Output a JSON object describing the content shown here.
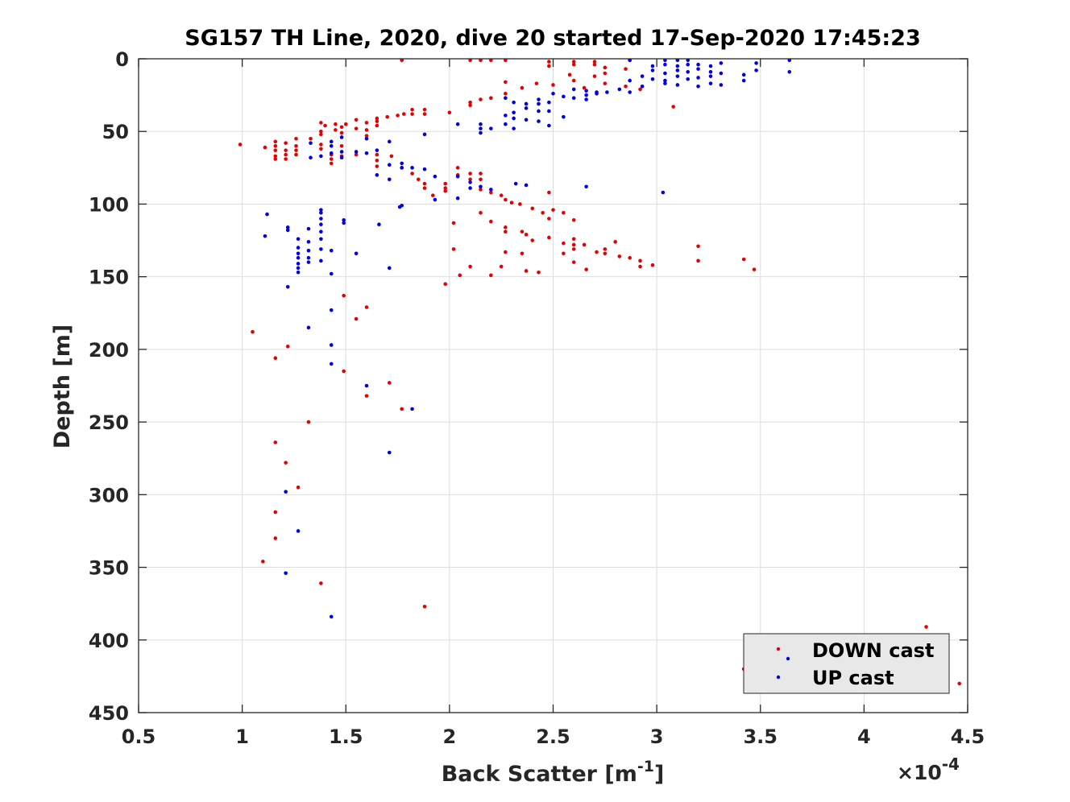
{
  "chart_data": {
    "type": "scatter",
    "title": "SG157 TH Line, 2020, dive 20 started 17-Sep-2020 17:45:23",
    "xlabel": "Back Scatter [m",
    "xlabel_sup": "-1",
    "xlabel_end": "]",
    "ylabel": "Depth [m]",
    "x_multiplier": {
      "base": "×10",
      "exponent": "-4"
    },
    "xlim": [
      0.5,
      4.5
    ],
    "ylim": [
      0,
      450
    ],
    "y_reversed": true,
    "grid": true,
    "legend_position": "bottom-right",
    "x_ticks": [
      "0.5",
      "1",
      "1.5",
      "2",
      "2.5",
      "3",
      "3.5",
      "4",
      "4.5"
    ],
    "y_ticks": [
      "0",
      "50",
      "100",
      "150",
      "200",
      "250",
      "300",
      "350",
      "400",
      "450"
    ],
    "series": [
      {
        "name": "DOWN cast",
        "color": "#e60000",
        "points": [
          [
            1.77,
            1
          ],
          [
            2.1,
            1
          ],
          [
            2.15,
            1
          ],
          [
            2.2,
            1
          ],
          [
            2.27,
            1
          ],
          [
            2.48,
            2
          ],
          [
            2.6,
            2
          ],
          [
            2.7,
            2
          ],
          [
            2.87,
            1
          ],
          [
            2.48,
            5
          ],
          [
            2.6,
            4
          ],
          [
            2.7,
            4
          ],
          [
            2.75,
            6
          ],
          [
            2.85,
            7
          ],
          [
            2.75,
            10
          ],
          [
            2.58,
            11
          ],
          [
            2.7,
            12
          ],
          [
            2.6,
            15
          ],
          [
            2.5,
            18
          ],
          [
            2.27,
            16
          ],
          [
            2.42,
            17
          ],
          [
            2.35,
            20
          ],
          [
            2.65,
            20
          ],
          [
            2.75,
            17
          ],
          [
            2.85,
            19
          ],
          [
            2.92,
            21
          ],
          [
            3.08,
            33
          ],
          [
            2.27,
            24
          ],
          [
            2.2,
            27
          ],
          [
            2.15,
            28
          ],
          [
            2.1,
            30
          ],
          [
            2.1,
            32
          ],
          [
            2.0,
            37
          ],
          [
            1.88,
            35
          ],
          [
            1.88,
            38
          ],
          [
            1.82,
            35
          ],
          [
            1.82,
            38
          ],
          [
            1.78,
            38
          ],
          [
            1.75,
            39
          ],
          [
            1.7,
            40
          ],
          [
            1.65,
            41
          ],
          [
            1.6,
            44
          ],
          [
            1.55,
            42
          ],
          [
            1.5,
            45
          ],
          [
            1.45,
            45
          ],
          [
            1.4,
            46
          ],
          [
            1.38,
            44
          ],
          [
            1.38,
            50
          ],
          [
            1.38,
            52
          ],
          [
            1.45,
            49
          ],
          [
            1.48,
            47
          ],
          [
            1.55,
            48
          ],
          [
            1.6,
            49
          ],
          [
            1.6,
            53
          ],
          [
            1.65,
            43
          ],
          [
            1.65,
            46
          ],
          [
            1.48,
            51
          ],
          [
            0.99,
            59
          ],
          [
            1.11,
            61
          ],
          [
            1.16,
            57
          ],
          [
            1.16,
            60
          ],
          [
            1.16,
            63
          ],
          [
            1.16,
            67
          ],
          [
            1.16,
            69
          ],
          [
            1.21,
            58
          ],
          [
            1.21,
            63
          ],
          [
            1.21,
            66
          ],
          [
            1.21,
            69
          ],
          [
            1.26,
            55
          ],
          [
            1.26,
            60
          ],
          [
            1.26,
            63
          ],
          [
            1.26,
            66
          ],
          [
            1.33,
            55
          ],
          [
            1.38,
            59
          ],
          [
            1.38,
            62
          ],
          [
            1.43,
            66
          ],
          [
            1.43,
            69
          ],
          [
            1.43,
            72
          ],
          [
            1.48,
            60
          ],
          [
            1.48,
            67
          ],
          [
            1.55,
            66
          ],
          [
            1.65,
            66
          ],
          [
            1.65,
            70
          ],
          [
            1.65,
            74
          ],
          [
            1.72,
            67
          ],
          [
            1.77,
            75
          ],
          [
            1.82,
            79
          ],
          [
            1.85,
            83
          ],
          [
            1.88,
            86
          ],
          [
            1.88,
            89
          ],
          [
            1.92,
            94
          ],
          [
            1.98,
            86
          ],
          [
            1.98,
            89
          ],
          [
            1.98,
            91
          ],
          [
            2.04,
            75
          ],
          [
            2.04,
            80
          ],
          [
            2.1,
            79
          ],
          [
            2.1,
            83
          ],
          [
            2.15,
            79
          ],
          [
            2.15,
            83
          ],
          [
            2.15,
            90
          ],
          [
            2.2,
            92
          ],
          [
            2.25,
            94
          ],
          [
            2.27,
            97
          ],
          [
            2.3,
            99
          ],
          [
            2.34,
            100
          ],
          [
            2.4,
            103
          ],
          [
            2.45,
            106
          ],
          [
            2.48,
            110
          ],
          [
            2.5,
            104
          ],
          [
            2.55,
            106
          ],
          [
            2.6,
            111
          ],
          [
            2.02,
            113
          ],
          [
            2.15,
            106
          ],
          [
            2.2,
            112
          ],
          [
            2.27,
            116
          ],
          [
            2.27,
            119
          ],
          [
            2.35,
            119
          ],
          [
            2.37,
            121
          ],
          [
            2.4,
            125
          ],
          [
            2.48,
            92
          ],
          [
            2.48,
            123
          ],
          [
            2.55,
            127
          ],
          [
            2.6,
            124
          ],
          [
            2.6,
            128
          ],
          [
            2.6,
            131
          ],
          [
            2.65,
            128
          ],
          [
            2.71,
            133
          ],
          [
            2.8,
            126
          ],
          [
            2.82,
            136
          ],
          [
            2.87,
            137
          ],
          [
            2.92,
            139
          ],
          [
            2.98,
            142
          ],
          [
            2.92,
            143
          ],
          [
            2.75,
            131
          ],
          [
            2.75,
            134
          ],
          [
            2.55,
            134
          ],
          [
            2.6,
            140
          ],
          [
            2.66,
            145
          ],
          [
            2.02,
            131
          ],
          [
            2.1,
            143
          ],
          [
            2.25,
            143
          ],
          [
            2.27,
            133
          ],
          [
            2.35,
            134
          ],
          [
            2.37,
            146
          ],
          [
            2.43,
            147
          ],
          [
            2.2,
            149
          ],
          [
            2.05,
            149
          ],
          [
            1.98,
            155
          ],
          [
            3.2,
            129
          ],
          [
            3.2,
            139
          ],
          [
            3.42,
            138
          ],
          [
            3.47,
            145
          ],
          [
            1.49,
            163
          ],
          [
            1.6,
            171
          ],
          [
            1.55,
            179
          ],
          [
            1.05,
            188
          ],
          [
            1.22,
            198
          ],
          [
            1.16,
            206
          ],
          [
            1.49,
            215
          ],
          [
            1.71,
            223
          ],
          [
            1.6,
            232
          ],
          [
            1.77,
            241
          ],
          [
            1.32,
            250
          ],
          [
            1.16,
            264
          ],
          [
            1.21,
            278
          ],
          [
            1.27,
            295
          ],
          [
            1.16,
            312
          ],
          [
            1.16,
            330
          ],
          [
            1.1,
            346
          ],
          [
            1.38,
            361
          ],
          [
            1.88,
            377
          ],
          [
            4.3,
            391
          ],
          [
            3.42,
            420
          ],
          [
            4.46,
            430
          ]
        ]
      },
      {
        "name": "UP cast",
        "color": "#0000e6",
        "points": [
          [
            2.87,
            1
          ],
          [
            3.04,
            1
          ],
          [
            3.1,
            1
          ],
          [
            3.15,
            1
          ],
          [
            3.64,
            1
          ],
          [
            2.98,
            5
          ],
          [
            3.04,
            4
          ],
          [
            3.1,
            5
          ],
          [
            3.15,
            4
          ],
          [
            3.2,
            4
          ],
          [
            3.26,
            5
          ],
          [
            3.31,
            3
          ],
          [
            3.48,
            3
          ],
          [
            2.98,
            8
          ],
          [
            3.04,
            10
          ],
          [
            3.1,
            8
          ],
          [
            3.15,
            9
          ],
          [
            3.2,
            7
          ],
          [
            3.26,
            9
          ],
          [
            3.31,
            10
          ],
          [
            3.42,
            11
          ],
          [
            3.48,
            8
          ],
          [
            3.64,
            9
          ],
          [
            2.93,
            12
          ],
          [
            2.98,
            14
          ],
          [
            3.04,
            15
          ],
          [
            3.1,
            12
          ],
          [
            3.15,
            14
          ],
          [
            3.2,
            13
          ],
          [
            3.26,
            12
          ],
          [
            3.04,
            17
          ],
          [
            3.1,
            18
          ],
          [
            3.2,
            19
          ],
          [
            3.26,
            17
          ],
          [
            3.31,
            18
          ],
          [
            3.42,
            15
          ],
          [
            2.87,
            15
          ],
          [
            2.93,
            19
          ],
          [
            2.87,
            23
          ],
          [
            2.82,
            21
          ],
          [
            2.71,
            24
          ],
          [
            2.66,
            22
          ],
          [
            2.6,
            21
          ],
          [
            2.5,
            24
          ],
          [
            2.43,
            28
          ],
          [
            2.37,
            31
          ],
          [
            2.27,
            27
          ],
          [
            2.31,
            30
          ],
          [
            2.37,
            34
          ],
          [
            2.31,
            37
          ],
          [
            2.43,
            36
          ],
          [
            2.48,
            36
          ],
          [
            2.43,
            31
          ],
          [
            2.48,
            30
          ],
          [
            2.55,
            26
          ],
          [
            2.6,
            27
          ],
          [
            2.66,
            25
          ],
          [
            2.66,
            28
          ],
          [
            2.71,
            23
          ],
          [
            2.76,
            23
          ],
          [
            2.31,
            41
          ],
          [
            2.27,
            39
          ],
          [
            2.37,
            42
          ],
          [
            2.43,
            43
          ],
          [
            2.48,
            46
          ],
          [
            2.55,
            40
          ],
          [
            2.27,
            45
          ],
          [
            2.31,
            48
          ],
          [
            2.2,
            48
          ],
          [
            2.15,
            45
          ],
          [
            2.15,
            48
          ],
          [
            2.15,
            51
          ],
          [
            2.04,
            45
          ],
          [
            1.88,
            52
          ],
          [
            1.6,
            55
          ],
          [
            1.71,
            57
          ],
          [
            1.6,
            65
          ],
          [
            1.65,
            63
          ],
          [
            1.55,
            64
          ],
          [
            1.43,
            57
          ],
          [
            1.43,
            60
          ],
          [
            1.48,
            54
          ],
          [
            1.48,
            64
          ],
          [
            1.48,
            68
          ],
          [
            1.43,
            65
          ],
          [
            1.38,
            67
          ],
          [
            1.33,
            68
          ],
          [
            1.33,
            58
          ],
          [
            1.71,
            73
          ],
          [
            1.77,
            72
          ],
          [
            1.77,
            75
          ],
          [
            1.82,
            75
          ],
          [
            1.88,
            76
          ],
          [
            1.93,
            81
          ],
          [
            2.04,
            81
          ],
          [
            2.1,
            85
          ],
          [
            2.1,
            89
          ],
          [
            2.15,
            88
          ],
          [
            2.2,
            90
          ],
          [
            2.32,
            86
          ],
          [
            2.37,
            87
          ],
          [
            2.66,
            88
          ],
          [
            3.03,
            92
          ],
          [
            1.65,
            80
          ],
          [
            1.71,
            83
          ],
          [
            1.77,
            101
          ],
          [
            2.04,
            96
          ],
          [
            1.93,
            97
          ],
          [
            1.76,
            102
          ],
          [
            1.12,
            107
          ],
          [
            1.11,
            122
          ],
          [
            1.22,
            116
          ],
          [
            1.22,
            118
          ],
          [
            1.27,
            124
          ],
          [
            1.27,
            130
          ],
          [
            1.27,
            134
          ],
          [
            1.27,
            137
          ],
          [
            1.27,
            141
          ],
          [
            1.27,
            144
          ],
          [
            1.27,
            147
          ],
          [
            1.32,
            117
          ],
          [
            1.32,
            126
          ],
          [
            1.32,
            132
          ],
          [
            1.32,
            137
          ],
          [
            1.32,
            140
          ],
          [
            1.38,
            106
          ],
          [
            1.38,
            110
          ],
          [
            1.38,
            114
          ],
          [
            1.38,
            119
          ],
          [
            1.38,
            124
          ],
          [
            1.38,
            131
          ],
          [
            1.38,
            139
          ],
          [
            1.43,
            132
          ],
          [
            1.43,
            148
          ],
          [
            1.49,
            111
          ],
          [
            1.49,
            113
          ],
          [
            1.55,
            134
          ],
          [
            1.66,
            114
          ],
          [
            1.71,
            144
          ],
          [
            1.38,
            104
          ],
          [
            1.22,
            157
          ],
          [
            1.43,
            173
          ],
          [
            1.32,
            185
          ],
          [
            1.43,
            197
          ],
          [
            1.43,
            210
          ],
          [
            1.6,
            225
          ],
          [
            1.82,
            241
          ],
          [
            1.71,
            271
          ],
          [
            1.21,
            298
          ],
          [
            1.27,
            325
          ],
          [
            1.21,
            354
          ],
          [
            1.43,
            384
          ]
        ]
      }
    ]
  }
}
